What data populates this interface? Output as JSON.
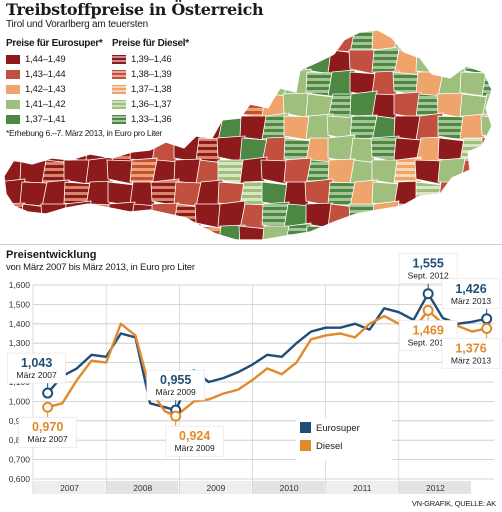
{
  "header": {
    "title": "Treibstoffpreise in Österreich",
    "subtitle": "Tirol und Vorarlberg am teuersten"
  },
  "map_legend": {
    "super": {
      "title": "Preise für Eurosuper*",
      "items": [
        {
          "label": "1,44–1,49",
          "color": "#8e1b1b"
        },
        {
          "label": "1,43–1,44",
          "color": "#c1503e"
        },
        {
          "label": "1,42–1,43",
          "color": "#efa46c"
        },
        {
          "label": "1,41–1,42",
          "color": "#9fbf7c"
        },
        {
          "label": "1,37–1,41",
          "color": "#4d8744"
        }
      ]
    },
    "diesel": {
      "title": "Preise für Diesel*",
      "items": [
        {
          "label": "1,39–1,46",
          "color": "#8e1b1b",
          "striped": true
        },
        {
          "label": "1,38–1,39",
          "color": "#c1503e",
          "striped": true
        },
        {
          "label": "1,37–1,38",
          "color": "#efa46c",
          "striped": true
        },
        {
          "label": "1,36–1,37",
          "color": "#9fbf7c",
          "striped": true
        },
        {
          "label": "1,33–1,36",
          "color": "#4d8744",
          "striped": true
        }
      ]
    },
    "note": "*Erhebung 6.–7. März 2013, in Euro pro Liter"
  },
  "chart": {
    "title": "Preisentwicklung",
    "subtitle": "von März 2007 bis März 2013, in Euro pro Liter"
  },
  "credit": "VN-GRAFIK, QUELLE: AK",
  "chart_data": {
    "type": "line",
    "ylim": [
      0.6,
      1.6
    ],
    "yticks": [
      "1,600",
      "1,500",
      "1,400",
      "1,300",
      "1,200",
      "1,100",
      "1,000",
      "0,900",
      "0,800",
      "0,700",
      "0,600"
    ],
    "year_labels": [
      "2007",
      "2008",
      "2009",
      "2010",
      "2011",
      "2012"
    ],
    "x": [
      2007.2,
      2007.4,
      2007.6,
      2007.8,
      2008.0,
      2008.2,
      2008.4,
      2008.6,
      2008.8,
      2008.95,
      2009.2,
      2009.4,
      2009.6,
      2009.8,
      2010.0,
      2010.2,
      2010.4,
      2010.6,
      2010.8,
      2011.0,
      2011.2,
      2011.4,
      2011.6,
      2011.8,
      2012.0,
      2012.2,
      2012.4,
      2012.6,
      2012.8,
      2013.0,
      2013.2
    ],
    "series": [
      {
        "name": "Eurosuper",
        "color": "#1f4e79",
        "values": [
          1.043,
          1.13,
          1.17,
          1.24,
          1.23,
          1.35,
          1.33,
          0.99,
          0.97,
          0.955,
          1.16,
          1.1,
          1.12,
          1.15,
          1.19,
          1.24,
          1.23,
          1.3,
          1.36,
          1.38,
          1.38,
          1.4,
          1.37,
          1.48,
          1.46,
          1.42,
          1.555,
          1.43,
          1.4,
          1.41,
          1.426
        ]
      },
      {
        "name": "Diesel",
        "color": "#e08a2c",
        "values": [
          0.97,
          0.99,
          1.11,
          1.21,
          1.2,
          1.4,
          1.34,
          1.06,
          0.95,
          0.924,
          1.0,
          1.01,
          1.04,
          1.06,
          1.11,
          1.17,
          1.14,
          1.2,
          1.32,
          1.34,
          1.35,
          1.33,
          1.4,
          1.44,
          1.4,
          1.37,
          1.469,
          1.4,
          1.39,
          1.36,
          1.376
        ]
      }
    ],
    "annotations": [
      {
        "series": 0,
        "index": 0,
        "value": "1,043",
        "date": "März 2007",
        "pos": "above"
      },
      {
        "series": 0,
        "index": 9,
        "value": "0,955",
        "date": "März 2009",
        "pos": "above"
      },
      {
        "series": 0,
        "index": 26,
        "value": "1,555",
        "date": "Sept. 2012",
        "pos": "above"
      },
      {
        "series": 0,
        "index": 30,
        "value": "1,426",
        "date": "März 2013",
        "pos": "above"
      },
      {
        "series": 1,
        "index": 0,
        "value": "0,970",
        "date": "März 2007",
        "pos": "below"
      },
      {
        "series": 1,
        "index": 9,
        "value": "0,924",
        "date": "März 2009",
        "pos": "below"
      },
      {
        "series": 1,
        "index": 26,
        "value": "1,469",
        "date": "Sept. 2012",
        "pos": "below"
      },
      {
        "series": 1,
        "index": 30,
        "value": "1,376",
        "date": "März 2013",
        "pos": "below"
      }
    ]
  }
}
